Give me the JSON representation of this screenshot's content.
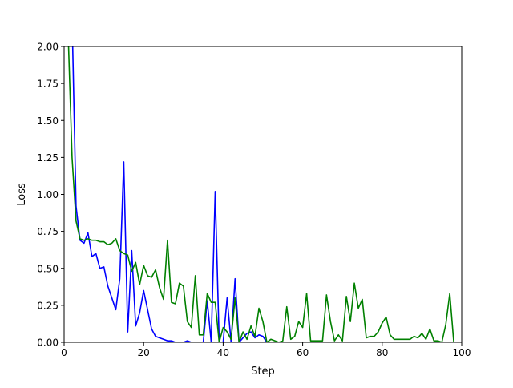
{
  "chart_data": {
    "type": "line",
    "title": "",
    "xlabel": "Step",
    "ylabel": "Loss",
    "xlim": [
      0,
      100
    ],
    "ylim": [
      0,
      2.0
    ],
    "xticks": [
      0,
      20,
      40,
      60,
      80,
      100
    ],
    "yticks": [
      0.0,
      0.25,
      0.5,
      0.75,
      1.0,
      1.25,
      1.5,
      1.75,
      2.0
    ],
    "xtick_labels": [
      "0",
      "20",
      "40",
      "60",
      "80",
      "100"
    ],
    "ytick_labels": [
      "0.00",
      "0.25",
      "0.50",
      "0.75",
      "1.00",
      "1.25",
      "1.50",
      "1.75",
      "2.00"
    ],
    "grid": false,
    "series": [
      {
        "color": "#0000ff",
        "x": [
          0,
          1,
          2,
          3,
          4,
          5,
          6,
          7,
          8,
          9,
          10,
          11,
          12,
          13,
          14,
          15,
          16,
          17,
          18,
          19,
          20,
          21,
          22,
          23,
          24,
          25,
          26,
          27,
          28,
          29,
          30,
          31,
          32,
          33,
          34,
          35,
          36,
          37,
          38,
          39,
          40,
          41,
          42,
          43,
          44,
          45,
          46,
          47,
          48,
          49,
          50,
          51,
          52,
          53,
          54,
          55,
          56,
          57,
          58,
          59,
          60,
          61,
          62,
          63,
          64,
          65,
          66,
          67,
          68,
          69,
          70,
          71,
          72,
          73,
          74,
          75,
          76,
          77,
          78,
          79,
          80,
          81,
          82,
          83,
          84,
          85,
          86,
          87,
          88,
          89,
          90,
          91,
          92,
          93,
          94,
          95,
          96,
          97,
          98,
          99,
          100
        ],
        "y": [
          2.1,
          2.15,
          2.2,
          0.92,
          0.69,
          0.67,
          0.74,
          0.58,
          0.6,
          0.5,
          0.51,
          0.38,
          0.3,
          0.22,
          0.43,
          1.22,
          0.07,
          0.62,
          0.11,
          0.2,
          0.35,
          0.22,
          0.09,
          0.04,
          0.03,
          0.02,
          0.01,
          0.01,
          0.0,
          0.0,
          0.0,
          0.01,
          0.0,
          0.0,
          0.0,
          0.0,
          0.28,
          0.0,
          1.02,
          0.0,
          0.0,
          0.3,
          0.0,
          0.43,
          0.0,
          0.03,
          0.06,
          0.07,
          0.03,
          0.05,
          0.04,
          0.0,
          0.0,
          0.0,
          0.0,
          0.0,
          0.0,
          0.0,
          0.0,
          0.0,
          0.0,
          0.0,
          0.0,
          0.0,
          0.0,
          0.0,
          0.0,
          0.0,
          0.0,
          0.0,
          0.0,
          0.0,
          0.0,
          0.0,
          0.0,
          0.0,
          0.0,
          0.0,
          0.0,
          0.0,
          0.0,
          0.0,
          0.0,
          0.0,
          0.0,
          0.0,
          0.0,
          0.0,
          0.0,
          0.0,
          0.0,
          0.0,
          0.0,
          0.0,
          0.0,
          0.0,
          0.0,
          0.0,
          0.0,
          0.0,
          0.0
        ]
      },
      {
        "color": "#008000",
        "x": [
          0,
          1,
          2,
          3,
          4,
          5,
          6,
          7,
          8,
          9,
          10,
          11,
          12,
          13,
          14,
          15,
          16,
          17,
          18,
          19,
          20,
          21,
          22,
          23,
          24,
          25,
          26,
          27,
          28,
          29,
          30,
          31,
          32,
          33,
          34,
          35,
          36,
          37,
          38,
          39,
          40,
          41,
          42,
          43,
          44,
          45,
          46,
          47,
          48,
          49,
          50,
          51,
          52,
          53,
          54,
          55,
          56,
          57,
          58,
          59,
          60,
          61,
          62,
          63,
          64,
          65,
          66,
          67,
          68,
          69,
          70,
          71,
          72,
          73,
          74,
          75,
          76,
          77,
          78,
          79,
          80,
          81,
          82,
          83,
          84,
          85,
          86,
          87,
          88,
          89,
          90,
          91,
          92,
          93,
          94,
          95,
          96,
          97,
          98,
          99,
          100
        ],
        "y": [
          2.1,
          2.1,
          1.25,
          0.82,
          0.7,
          0.69,
          0.7,
          0.69,
          0.69,
          0.68,
          0.68,
          0.66,
          0.67,
          0.7,
          0.62,
          0.6,
          0.59,
          0.48,
          0.54,
          0.39,
          0.52,
          0.45,
          0.44,
          0.49,
          0.37,
          0.29,
          0.69,
          0.27,
          0.26,
          0.4,
          0.38,
          0.14,
          0.1,
          0.45,
          0.05,
          0.05,
          0.33,
          0.27,
          0.27,
          0.0,
          0.1,
          0.07,
          0.02,
          0.3,
          0.0,
          0.07,
          0.02,
          0.11,
          0.04,
          0.23,
          0.14,
          0.0,
          0.02,
          0.01,
          0.0,
          0.01,
          0.24,
          0.02,
          0.04,
          0.14,
          0.1,
          0.33,
          0.01,
          0.01,
          0.01,
          0.01,
          0.32,
          0.14,
          0.01,
          0.05,
          0.01,
          0.31,
          0.14,
          0.4,
          0.23,
          0.29,
          0.03,
          0.04,
          0.04,
          0.07,
          0.13,
          0.17,
          0.05,
          0.02,
          0.02,
          0.02,
          0.02,
          0.02,
          0.04,
          0.03,
          0.06,
          0.02,
          0.09,
          0.01,
          0.01,
          0.0,
          0.12,
          0.33,
          0.0,
          0.0,
          0.0
        ]
      }
    ]
  }
}
